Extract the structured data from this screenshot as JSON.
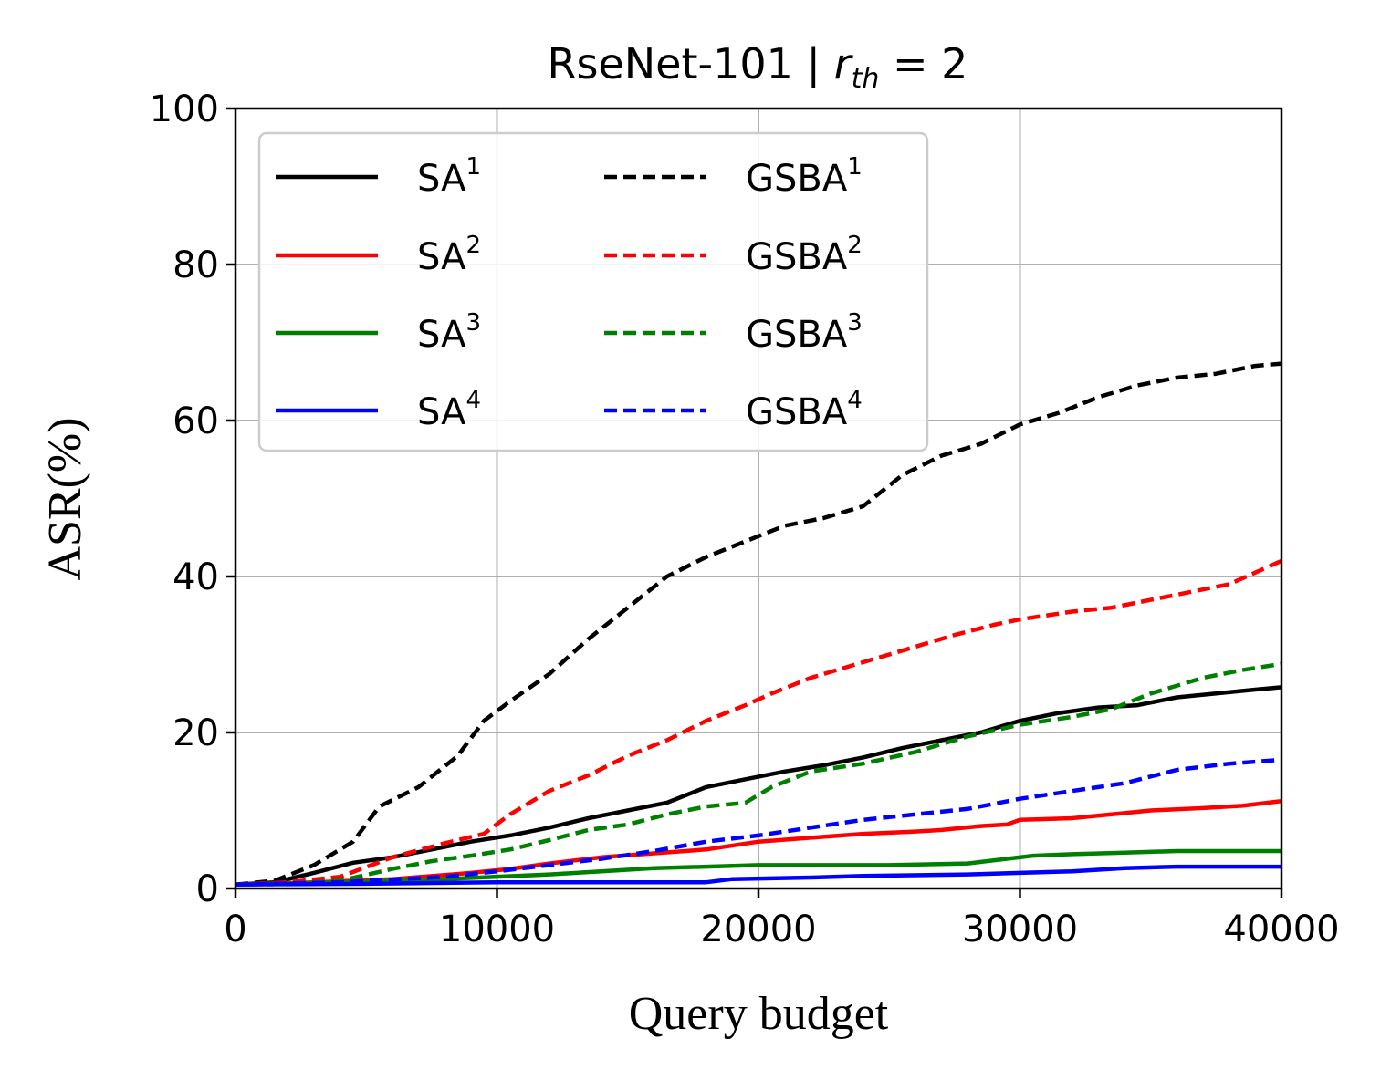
{
  "chart_data": {
    "type": "line",
    "title": "RseNet-101  |  r_th = 2",
    "title_parts": {
      "main": "RseNet-101  |  ",
      "var": "r",
      "sub": "th",
      "rest": " = 2"
    },
    "xlabel": "Query budget",
    "ylabel": "ASR(%)",
    "xlim": [
      0,
      40000
    ],
    "ylim": [
      0,
      100
    ],
    "xticks": [
      "0",
      "10000",
      "20000",
      "30000",
      "40000"
    ],
    "yticks": [
      "0",
      "20",
      "40",
      "60",
      "80",
      "100"
    ],
    "xtick_values": [
      0,
      10000,
      20000,
      30000,
      40000
    ],
    "ytick_values": [
      0,
      20,
      40,
      60,
      80,
      100
    ],
    "grid": true,
    "legend_position": "top-left",
    "legend_columns": 2,
    "series": [
      {
        "name": "SA",
        "sup": "1",
        "color": "#000000",
        "style": "solid",
        "x": [
          0,
          1500,
          3000,
          4500,
          6000,
          7500,
          9000,
          10500,
          12000,
          13500,
          15000,
          16500,
          18000,
          19500,
          21000,
          22500,
          24000,
          25500,
          27000,
          28500,
          30000,
          31500,
          33000,
          34500,
          36000,
          37500,
          39000,
          40000
        ],
        "y": [
          0.5,
          0.8,
          2.0,
          3.3,
          4.0,
          5.0,
          6.0,
          6.8,
          7.8,
          9.0,
          10.0,
          11.0,
          13.0,
          14.0,
          15.0,
          15.8,
          16.8,
          18.0,
          19.0,
          20.0,
          21.5,
          22.5,
          23.2,
          23.5,
          24.5,
          25.0,
          25.5,
          25.8
        ]
      },
      {
        "name": "SA",
        "sup": "2",
        "color": "#ff0000",
        "style": "solid",
        "x": [
          0,
          3000,
          6000,
          9000,
          10500,
          12000,
          14000,
          16000,
          18000,
          20000,
          22000,
          24000,
          26000,
          27000,
          28500,
          29500,
          30000,
          32000,
          33500,
          35000,
          37000,
          38500,
          40000
        ],
        "y": [
          0.5,
          0.8,
          1.2,
          2.0,
          2.5,
          3.2,
          4.0,
          4.5,
          5.0,
          6.0,
          6.5,
          7.0,
          7.3,
          7.5,
          8.0,
          8.2,
          8.8,
          9.0,
          9.5,
          10.0,
          10.3,
          10.6,
          11.2
        ]
      },
      {
        "name": "SA",
        "sup": "3",
        "color": "#008000",
        "style": "solid",
        "x": [
          0,
          4000,
          8000,
          12000,
          14000,
          16000,
          18000,
          20000,
          22000,
          25000,
          28000,
          29500,
          30500,
          32000,
          34000,
          36000,
          40000
        ],
        "y": [
          0.5,
          0.8,
          1.2,
          1.8,
          2.2,
          2.6,
          2.8,
          3.0,
          3.0,
          3.0,
          3.2,
          3.8,
          4.2,
          4.4,
          4.6,
          4.8,
          4.8
        ]
      },
      {
        "name": "SA",
        "sup": "4",
        "color": "#0000ff",
        "style": "solid",
        "x": [
          0,
          5000,
          10000,
          14000,
          18000,
          19000,
          22000,
          24000,
          28000,
          30000,
          32000,
          34000,
          36000,
          40000
        ],
        "y": [
          0.5,
          0.6,
          0.8,
          0.8,
          0.8,
          1.2,
          1.4,
          1.6,
          1.8,
          2.0,
          2.2,
          2.6,
          2.8,
          2.8
        ]
      },
      {
        "name": "GSBA",
        "sup": "1",
        "color": "#000000",
        "style": "dashed",
        "x": [
          0,
          1500,
          3000,
          4500,
          5500,
          7000,
          8500,
          9500,
          10500,
          12000,
          13500,
          15000,
          16500,
          18000,
          19500,
          21000,
          22500,
          24000,
          25500,
          27000,
          28500,
          30000,
          31500,
          33000,
          34500,
          36000,
          37500,
          39000,
          40000
        ],
        "y": [
          0.5,
          1.0,
          3.0,
          6.0,
          10.5,
          13.0,
          17.0,
          21.5,
          24.0,
          27.5,
          32.0,
          36.0,
          40.0,
          42.5,
          44.5,
          46.5,
          47.5,
          49.0,
          53.0,
          55.5,
          57.0,
          59.5,
          61.0,
          63.0,
          64.5,
          65.5,
          66.0,
          67.0,
          67.3
        ]
      },
      {
        "name": "GSBA",
        "sup": "2",
        "color": "#ff0000",
        "style": "dashed",
        "x": [
          0,
          2000,
          4000,
          6000,
          8000,
          9500,
          10500,
          12000,
          13500,
          15000,
          16500,
          18000,
          19500,
          20500,
          22000,
          24000,
          26000,
          27500,
          29000,
          30000,
          32000,
          33500,
          35000,
          36500,
          38000,
          39000,
          40000
        ],
        "y": [
          0.5,
          0.8,
          1.5,
          4.0,
          5.8,
          7.0,
          9.5,
          12.5,
          14.5,
          17.0,
          19.0,
          21.5,
          23.5,
          25.0,
          27.0,
          29.0,
          31.0,
          32.5,
          33.8,
          34.5,
          35.5,
          36.0,
          37.0,
          38.0,
          39.0,
          40.5,
          42.0
        ]
      },
      {
        "name": "GSBA",
        "sup": "3",
        "color": "#008000",
        "style": "dashed",
        "x": [
          0,
          2000,
          4000,
          6000,
          7500,
          9000,
          10500,
          12000,
          13500,
          15000,
          16500,
          18000,
          19500,
          20500,
          22000,
          24000,
          26000,
          28000,
          30000,
          32000,
          33500,
          35000,
          37000,
          38500,
          40000
        ],
        "y": [
          0.5,
          0.6,
          1.0,
          2.5,
          3.5,
          4.2,
          5.0,
          6.2,
          7.5,
          8.2,
          9.5,
          10.5,
          11.0,
          13.0,
          15.0,
          16.0,
          17.5,
          19.5,
          21.0,
          22.0,
          23.0,
          25.0,
          27.0,
          28.0,
          28.8
        ]
      },
      {
        "name": "GSBA",
        "sup": "4",
        "color": "#0000ff",
        "style": "dashed",
        "x": [
          0,
          4000,
          8000,
          10000,
          12000,
          14000,
          16000,
          18000,
          20000,
          22000,
          24000,
          26000,
          28000,
          30000,
          32000,
          34000,
          36000,
          38000,
          40000
        ],
        "y": [
          0.5,
          0.8,
          1.5,
          2.2,
          3.0,
          3.8,
          4.8,
          6.0,
          6.8,
          7.8,
          8.8,
          9.5,
          10.2,
          11.5,
          12.5,
          13.5,
          15.2,
          16.0,
          16.5
        ]
      }
    ]
  }
}
